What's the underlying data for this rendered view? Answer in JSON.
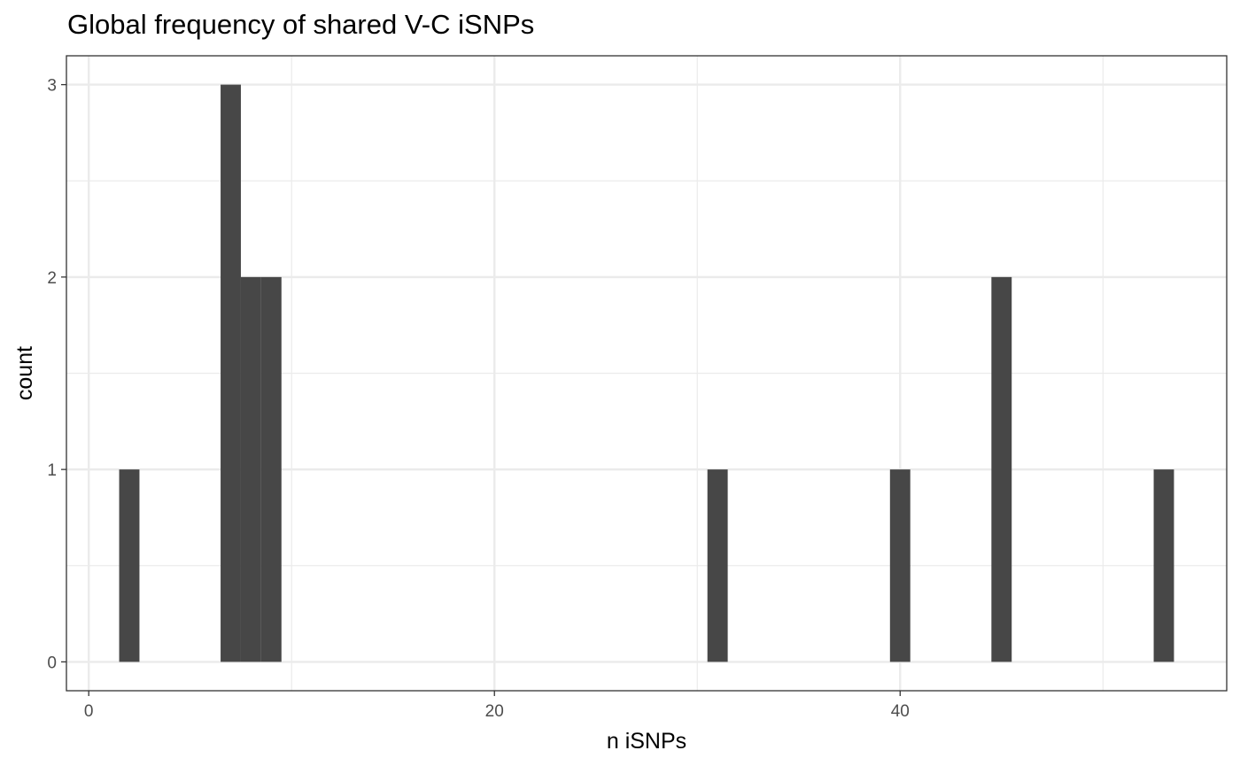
{
  "chart_data": {
    "type": "bar",
    "title": "Global frequency of shared V-C iSNPs",
    "xlabel": "n iSNPs",
    "ylabel": "count",
    "xlim": [
      -1.1,
      56.1
    ],
    "ylim": [
      -0.15,
      3.15
    ],
    "x_ticks": [
      0,
      20,
      40
    ],
    "y_ticks": [
      0,
      1,
      2,
      3
    ],
    "bin_width": 1,
    "bins": [
      {
        "x": 2,
        "count": 1
      },
      {
        "x": 7,
        "count": 3
      },
      {
        "x": 8,
        "count": 2
      },
      {
        "x": 9,
        "count": 2
      },
      {
        "x": 31,
        "count": 1
      },
      {
        "x": 40,
        "count": 1
      },
      {
        "x": 45,
        "count": 2
      },
      {
        "x": 53,
        "count": 1
      }
    ],
    "grid": true,
    "bar_color": "#474747",
    "grid_color": "#ebebeb",
    "panel_border_color": "#333333"
  }
}
